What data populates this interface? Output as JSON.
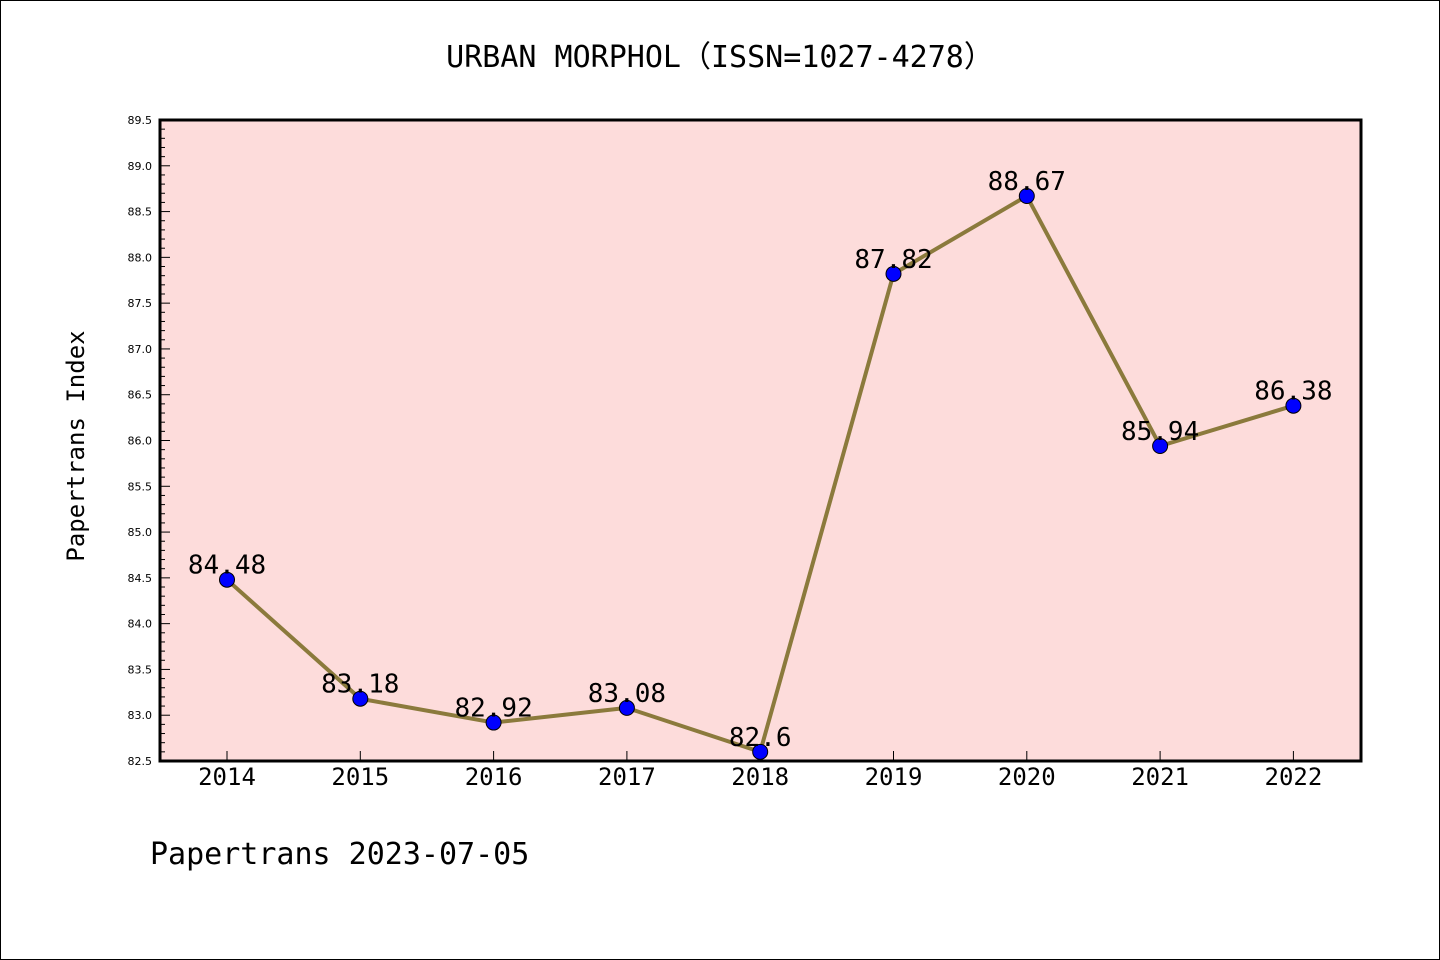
{
  "chart_data": {
    "type": "line",
    "title": "URBAN MORPHOL（ISSN=1027-4278）",
    "ylabel": "Papertrans Index",
    "xlabel": "",
    "categories": [
      "2014",
      "2015",
      "2016",
      "2017",
      "2018",
      "2019",
      "2020",
      "2021",
      "2022"
    ],
    "values": [
      84.48,
      83.18,
      82.92,
      83.08,
      82.6,
      87.82,
      88.67,
      85.94,
      86.38
    ],
    "data_labels": [
      "84.48",
      "83.18",
      "82.92",
      "83.08",
      "82.6",
      "87.82",
      "88.67",
      "85.94",
      "86.38"
    ],
    "ylim": [
      82.5,
      89.5
    ],
    "yticks": [
      "82.5",
      "83.0",
      "83.5",
      "84.0",
      "84.5",
      "85.0",
      "85.5",
      "86.0",
      "86.5",
      "87.0",
      "87.5",
      "88.0",
      "88.5",
      "89.0",
      "89.5"
    ],
    "grid": false,
    "line_color": "#8b7a3c",
    "marker_color": "#0000ff",
    "plot_background": "#fddcdb"
  },
  "footer": "Papertrans 2023-07-05"
}
